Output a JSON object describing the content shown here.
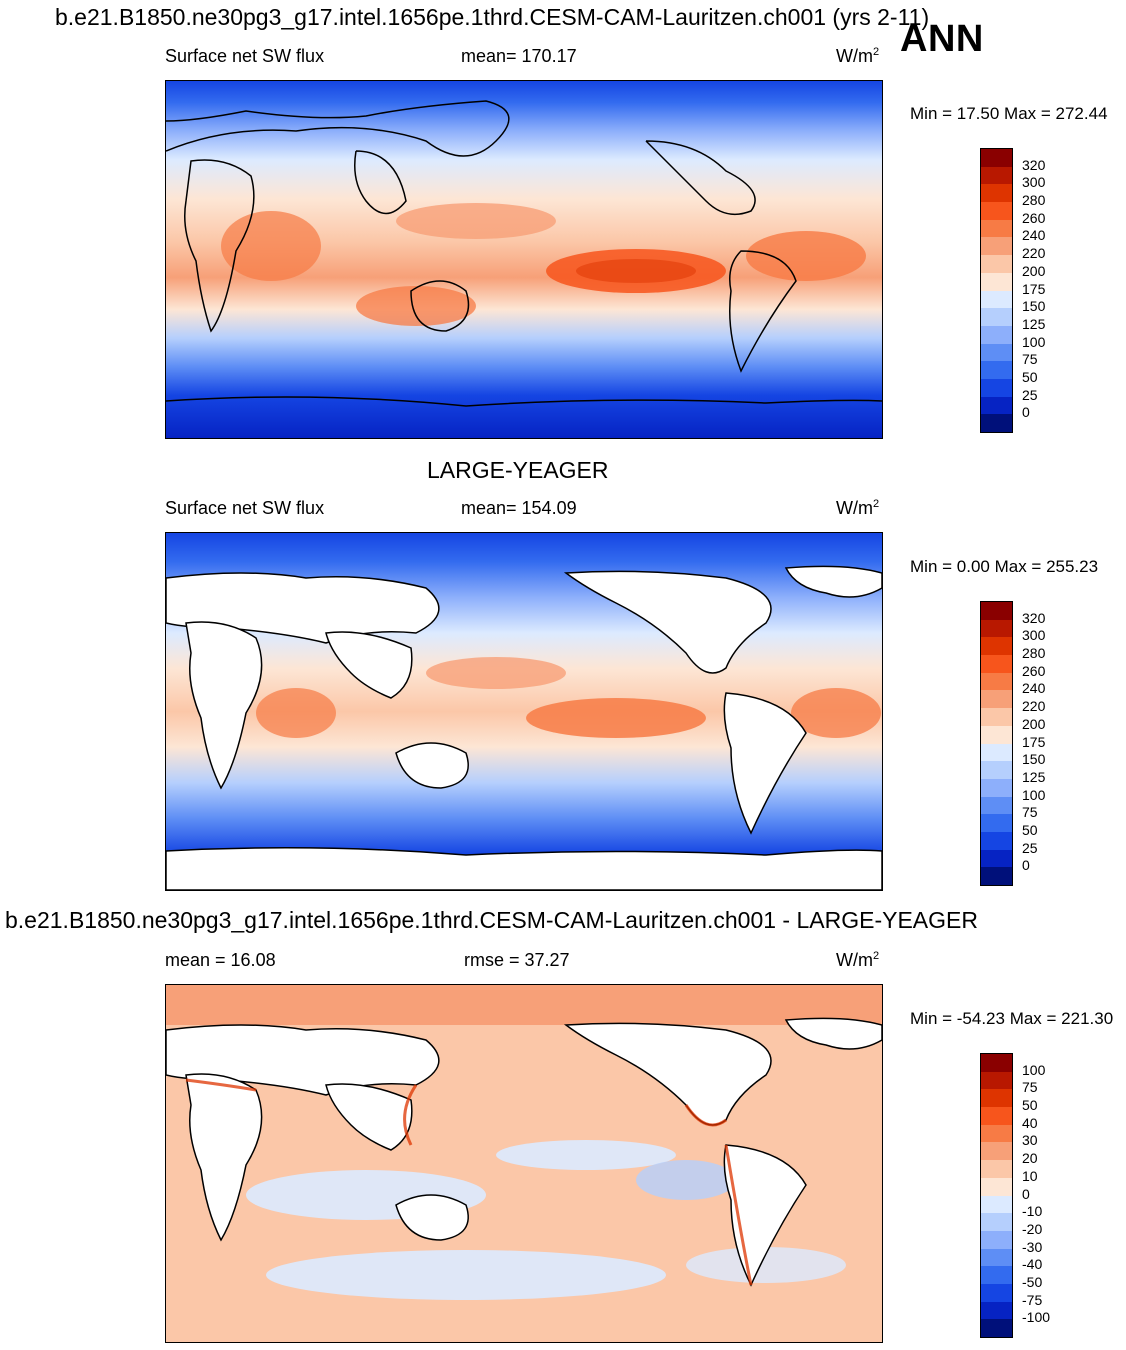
{
  "header": {
    "case_title": "b.e21.B1850.ne30pg3_g17.intel.1656pe.1thrd.CESM-CAM-Lauritzen.ch001 (yrs 2-11)",
    "season": "ANN"
  },
  "panels": [
    {
      "variable": "Surface net SW flux",
      "stat": "mean= 170.17",
      "units": "W/m",
      "units_sup": "2",
      "minmax": "Min =  17.50 Max = 272.44",
      "colorbar_labels": [
        "320",
        "300",
        "280",
        "260",
        "240",
        "220",
        "200",
        "175",
        "150",
        "125",
        "100",
        "75",
        "50",
        "25",
        "0"
      ],
      "colors": [
        "#8a0000",
        "#b81800",
        "#de3400",
        "#f7551c",
        "#f77b45",
        "#f7a078",
        "#fbc7a8",
        "#fde6d5",
        "#dceaff",
        "#b5cffd",
        "#8daffb",
        "#5e8ef5",
        "#336bef",
        "#1545e3",
        "#0623c3",
        "#00107a"
      ]
    },
    {
      "title": "LARGE-YEAGER",
      "variable": "Surface net SW flux",
      "stat": "mean= 154.09",
      "units": "W/m",
      "units_sup": "2",
      "minmax": "Min =   0.00 Max = 255.23",
      "colorbar_labels": [
        "320",
        "300",
        "280",
        "260",
        "240",
        "220",
        "200",
        "175",
        "150",
        "125",
        "100",
        "75",
        "50",
        "25",
        "0"
      ],
      "colors": [
        "#8a0000",
        "#b81800",
        "#de3400",
        "#f7551c",
        "#f77b45",
        "#f7a078",
        "#fbc7a8",
        "#fde6d5",
        "#dceaff",
        "#b5cffd",
        "#8daffb",
        "#5e8ef5",
        "#336bef",
        "#1545e3",
        "#0623c3",
        "#00107a"
      ]
    },
    {
      "title": "b.e21.B1850.ne30pg3_g17.intel.1656pe.1thrd.CESM-CAM-Lauritzen.ch001 - LARGE-YEAGER",
      "variable": "mean =  16.08",
      "stat": "rmse =  37.27",
      "units": "W/m",
      "units_sup": "2",
      "minmax": "Min = -54.23 Max = 221.30",
      "colorbar_labels": [
        "100",
        "75",
        "50",
        "40",
        "30",
        "20",
        "10",
        "0",
        "-10",
        "-20",
        "-30",
        "-40",
        "-50",
        "-75",
        "-100"
      ],
      "colors": [
        "#8a0000",
        "#b81800",
        "#de3400",
        "#f7551c",
        "#f77b45",
        "#f7a078",
        "#fbc7a8",
        "#fde6d5",
        "#dceaff",
        "#b5cffd",
        "#8daffb",
        "#5e8ef5",
        "#336bef",
        "#1545e3",
        "#0623c3",
        "#00107a"
      ]
    }
  ]
}
